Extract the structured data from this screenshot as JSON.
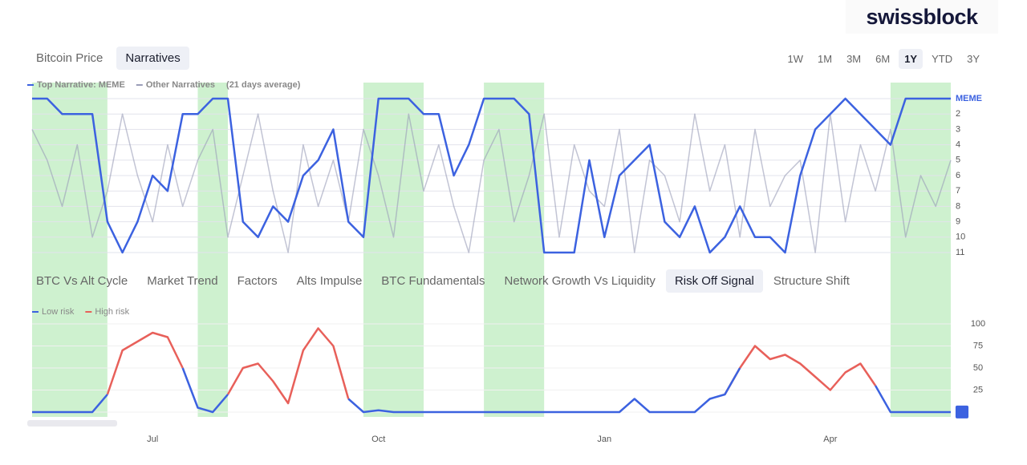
{
  "header": {
    "logo": "swissblock",
    "tabs": [
      "Bitcoin Price",
      "Narratives"
    ],
    "active_tab": 1,
    "ranges": [
      "1W",
      "1M",
      "3M",
      "6M",
      "1Y",
      "YTD",
      "3Y"
    ],
    "active_range": 4
  },
  "indicator_tabs": {
    "items": [
      "BTC Vs Alt Cycle",
      "Market Trend",
      "Factors",
      "Alts Impulse",
      "BTC Fundamentals",
      "Network Growth Vs Liquidity",
      "Risk Off Signal",
      "Structure Shift"
    ],
    "active": 6
  },
  "shaded_periods": [
    [
      0,
      5
    ],
    [
      11,
      13
    ],
    [
      22,
      26
    ],
    [
      30,
      34
    ],
    [
      57,
      61
    ]
  ],
  "chart_data": [
    {
      "type": "line",
      "note": "(21 days average)",
      "ylim": [
        11,
        1
      ],
      "yticks": [
        {
          "value": 1,
          "label": "MEME"
        },
        2,
        3,
        4,
        5,
        6,
        7,
        8,
        9,
        10,
        11
      ],
      "grid": true,
      "series": [
        {
          "name": "Other Narratives",
          "color": "#9a9db8",
          "values": [
            3,
            5,
            8,
            4,
            10,
            7,
            2,
            6,
            9,
            4,
            8,
            5,
            3,
            10,
            6,
            2,
            7,
            11,
            4,
            8,
            5,
            9,
            3,
            6,
            10,
            2,
            7,
            4,
            8,
            11,
            5,
            3,
            9,
            6,
            2,
            10,
            4,
            7,
            8,
            3,
            11,
            5,
            6,
            9,
            2,
            7,
            4,
            10,
            3,
            8,
            6,
            5,
            11,
            2,
            9,
            4,
            7,
            3,
            10,
            6,
            8,
            5
          ]
        },
        {
          "name": "Top Narrative: MEME",
          "color": "#3c62e0",
          "values": [
            1,
            1,
            2,
            2,
            2,
            9,
            11,
            9,
            6,
            7,
            2,
            2,
            1,
            1,
            9,
            10,
            8,
            9,
            6,
            5,
            3,
            9,
            10,
            1,
            1,
            1,
            2,
            2,
            6,
            4,
            1,
            1,
            1,
            2,
            11,
            11,
            11,
            5,
            10,
            6,
            5,
            4,
            9,
            10,
            8,
            11,
            10,
            8,
            10,
            10,
            11,
            6,
            3,
            2,
            1,
            2,
            3,
            4,
            1,
            1,
            1,
            1
          ]
        }
      ]
    },
    {
      "type": "line",
      "categories": [
        null,
        null,
        null,
        null,
        null,
        null,
        null,
        null,
        "Jul",
        null,
        null,
        null,
        null,
        null,
        null,
        null,
        null,
        null,
        null,
        null,
        null,
        null,
        null,
        "Oct",
        null,
        null,
        null,
        null,
        null,
        null,
        null,
        null,
        null,
        null,
        null,
        null,
        null,
        null,
        "Jan",
        null,
        null,
        null,
        null,
        null,
        null,
        null,
        null,
        null,
        null,
        null,
        null,
        null,
        null,
        "Apr",
        null,
        null,
        null,
        null,
        null,
        null,
        null,
        null
      ],
      "ylim": [
        0,
        100
      ],
      "yticks": [
        0,
        25,
        50,
        75,
        100
      ],
      "grid": true,
      "series": [
        {
          "name": "High risk",
          "color": "#e8605a",
          "values": [
            null,
            null,
            null,
            null,
            null,
            20,
            70,
            80,
            90,
            85,
            50,
            null,
            null,
            20,
            50,
            55,
            35,
            10,
            70,
            95,
            75,
            15,
            null,
            null,
            null,
            null,
            null,
            null,
            null,
            null,
            null,
            null,
            null,
            null,
            null,
            null,
            null,
            null,
            null,
            null,
            null,
            null,
            null,
            null,
            null,
            null,
            20,
            50,
            75,
            60,
            65,
            55,
            40,
            25,
            45,
            55,
            30,
            null,
            null,
            null,
            null,
            null
          ]
        },
        {
          "name": "Low risk",
          "color": "#3c62e0",
          "values": [
            0,
            0,
            0,
            0,
            0,
            20,
            null,
            null,
            null,
            null,
            50,
            5,
            0,
            20,
            null,
            null,
            null,
            null,
            null,
            null,
            null,
            15,
            0,
            2,
            0,
            0,
            0,
            0,
            0,
            0,
            0,
            0,
            0,
            0,
            0,
            0,
            0,
            0,
            0,
            0,
            15,
            0,
            0,
            0,
            0,
            15,
            20,
            50,
            null,
            null,
            null,
            null,
            null,
            null,
            null,
            null,
            30,
            0,
            0,
            0,
            0,
            0
          ]
        }
      ]
    }
  ]
}
